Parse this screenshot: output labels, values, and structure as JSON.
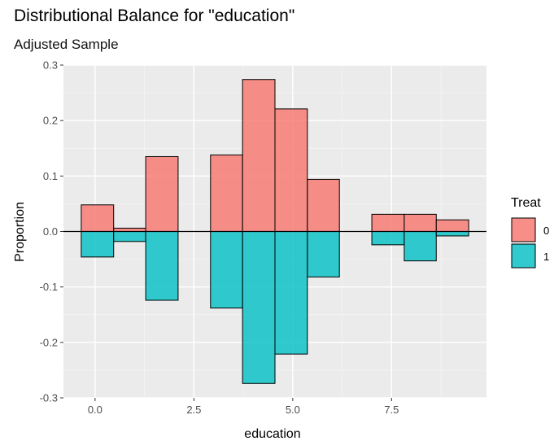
{
  "chart_data": {
    "type": "bar",
    "title": "Distributional Balance for \"education\"",
    "subtitle": "Adjusted Sample",
    "xlabel": "education",
    "ylabel": "Proportion",
    "xlim": [
      -0.8,
      9.9
    ],
    "ylim": [
      -0.3,
      0.3
    ],
    "x_ticks": [
      0.0,
      2.5,
      5.0,
      7.5
    ],
    "x_tick_labels": [
      "0.0",
      "2.5",
      "5.0",
      "7.5"
    ],
    "y_ticks": [
      0.3,
      0.2,
      0.1,
      0.0,
      -0.1,
      -0.2,
      -0.3
    ],
    "y_tick_labels": [
      "0.3",
      "0.2",
      "0.1",
      "0.0",
      "-0.1",
      "-0.2",
      "-0.3"
    ],
    "grid": true,
    "legend": {
      "title": "Treat",
      "position": "right",
      "entries": [
        {
          "label": "0",
          "color": "#F8766D"
        },
        {
          "label": "1",
          "color": "#00BFC4"
        }
      ]
    },
    "bins": [
      {
        "start": -0.35,
        "end": 0.47
      },
      {
        "start": 0.47,
        "end": 1.28
      },
      {
        "start": 1.28,
        "end": 2.1
      },
      {
        "start": 2.92,
        "end": 3.73
      },
      {
        "start": 3.73,
        "end": 4.55
      },
      {
        "start": 4.55,
        "end": 5.37
      },
      {
        "start": 5.37,
        "end": 6.18
      },
      {
        "start": 7.0,
        "end": 7.82
      },
      {
        "start": 7.82,
        "end": 8.63
      },
      {
        "start": 8.63,
        "end": 9.45
      }
    ],
    "series": [
      {
        "name": "0",
        "color": "#F8766D",
        "values": [
          0.048,
          0.006,
          0.135,
          0.138,
          0.274,
          0.221,
          0.094,
          0.031,
          0.031,
          0.021
        ]
      },
      {
        "name": "1",
        "color": "#00BFC4",
        "values": [
          -0.046,
          -0.018,
          -0.124,
          -0.138,
          -0.274,
          -0.221,
          -0.082,
          -0.024,
          -0.053,
          -0.008
        ]
      }
    ]
  }
}
